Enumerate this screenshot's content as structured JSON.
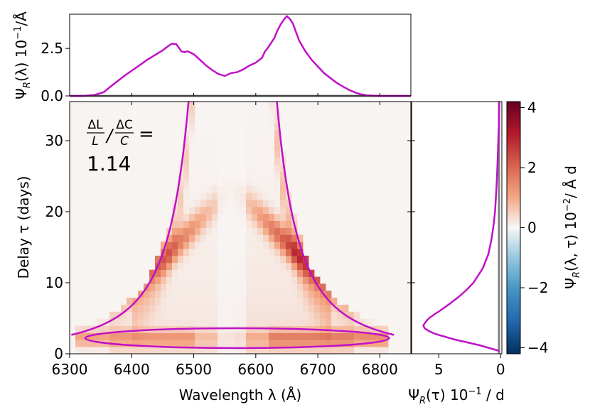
{
  "chart_data": [
    {
      "type": "line",
      "panel": "top",
      "title": "",
      "xlabel": "",
      "ylabel": "Ψ_R(λ) 10⁻¹/Å",
      "ylabel_parts": {
        "main": "Ψ",
        "sub": "R",
        "rest": "(λ) 10",
        "sup": "−1",
        "unit": "/Å"
      },
      "xlim": [
        6300,
        6850
      ],
      "ylim": [
        0,
        4.3
      ],
      "yticks": [
        0.0,
        2.5
      ],
      "ytick_labels": [
        "0.0",
        "2.5"
      ],
      "color": "#c010c8",
      "baseline_color": "#808080",
      "series": [
        {
          "name": "Ψ_R(λ)",
          "x": [
            6300,
            6320,
            6340,
            6355,
            6370,
            6390,
            6410,
            6425,
            6440,
            6450,
            6460,
            6465,
            6472,
            6480,
            6485,
            6490,
            6500,
            6510,
            6520,
            6530,
            6540,
            6550,
            6560,
            6570,
            6580,
            6590,
            6600,
            6610,
            6615,
            6620,
            6625,
            6630,
            6635,
            6640,
            6645,
            6650,
            6655,
            6660,
            6665,
            6670,
            6680,
            6690,
            6700,
            6710,
            6720,
            6730,
            6740,
            6750,
            6760,
            6770,
            6780,
            6800,
            6850
          ],
          "y": [
            0.0,
            0.0,
            0.05,
            0.2,
            0.6,
            1.1,
            1.55,
            1.9,
            2.2,
            2.4,
            2.65,
            2.75,
            2.72,
            2.35,
            2.3,
            2.35,
            2.2,
            1.9,
            1.6,
            1.35,
            1.15,
            1.05,
            1.2,
            1.25,
            1.4,
            1.6,
            1.75,
            2.0,
            2.35,
            2.55,
            2.8,
            3.05,
            3.45,
            3.75,
            4.0,
            4.2,
            4.05,
            3.8,
            3.35,
            2.9,
            2.35,
            1.9,
            1.55,
            1.2,
            0.95,
            0.7,
            0.5,
            0.32,
            0.18,
            0.08,
            0.03,
            0.0,
            0.0
          ]
        }
      ]
    },
    {
      "type": "heatmap",
      "panel": "main",
      "title": "",
      "xlabel": "Wavelength λ (Å)",
      "ylabel": "Delay τ (days)",
      "xlim": [
        6300,
        6850
      ],
      "ylim": [
        0,
        35.5
      ],
      "xticks": [
        6300,
        6400,
        6500,
        6600,
        6700,
        6800
      ],
      "xtick_labels": [
        "6300",
        "6400",
        "6500",
        "6600",
        "6700",
        "6800"
      ],
      "yticks": [
        0,
        10,
        20,
        30
      ],
      "ytick_labels": [
        "0",
        "10",
        "20",
        "30"
      ],
      "annotation": {
        "lines": [
          "ΔL/L / ΔC/C =",
          "1.14"
        ],
        "frac1_num": "ΔL",
        "frac1_den": "L",
        "frac2_num": "ΔC",
        "frac2_den": "C",
        "equals": "=",
        "value": "1.14"
      },
      "overlay_curves": {
        "color": "#c010c8",
        "line_center": 6562.8,
        "ellipse": {
          "center_lambda": 6570,
          "center_tau": 2.2,
          "half_width_lambda": 245,
          "half_height_tau": 1.4
        },
        "virial_envelope_note": "tau decreasing as inverse square of velocity offset"
      },
      "colormap": "RdBu_r",
      "clim": [
        -4.2,
        4.2
      ],
      "colorbar": {
        "label": "Ψ_R(λ, τ) 10⁻²/ Å d",
        "label_parts": {
          "main": "Ψ",
          "sub": "R",
          "rest": "(λ, τ) 10",
          "sup": "−2",
          "unit": "/ Å d"
        },
        "ticks": [
          -4,
          -2,
          0,
          2,
          4
        ],
        "tick_labels": [
          "−4",
          "−2",
          "0",
          "2",
          "4"
        ]
      }
    },
    {
      "type": "line",
      "panel": "right",
      "title": "",
      "xlabel": "Ψ_R(τ) 10⁻¹ / d",
      "xlabel_parts": {
        "main": "Ψ",
        "sub": "R",
        "rest": "(τ) 10",
        "sup": "−1",
        "unit": " / d"
      },
      "ylabel": "",
      "xlim": [
        7.2,
        -0.1
      ],
      "ylim": [
        0,
        35.5
      ],
      "xticks": [
        5,
        0
      ],
      "xtick_labels": [
        "5",
        "0"
      ],
      "color": "#c010c8",
      "baseline_color": "#808080",
      "series": [
        {
          "name": "Ψ_R(τ)",
          "tau": [
            0.4,
            0.8,
            1.2,
            1.6,
            2.0,
            2.4,
            2.8,
            3.2,
            3.6,
            4.0,
            4.5,
            5.0,
            5.5,
            6.0,
            7.0,
            8.0,
            9.0,
            10.0,
            12.0,
            14.0,
            16.0,
            18.0,
            20.0,
            22.0,
            24.0,
            26.0,
            28.0,
            30.0,
            32.0,
            34.0,
            35.5
          ],
          "value": [
            0.1,
            0.9,
            1.7,
            2.7,
            3.7,
            4.5,
            5.3,
            5.8,
            6.15,
            6.25,
            6.05,
            5.8,
            5.4,
            4.95,
            4.15,
            3.4,
            2.75,
            2.2,
            1.45,
            1.0,
            0.75,
            0.58,
            0.45,
            0.38,
            0.32,
            0.27,
            0.23,
            0.19,
            0.15,
            0.12,
            0.1
          ]
        }
      ]
    }
  ]
}
